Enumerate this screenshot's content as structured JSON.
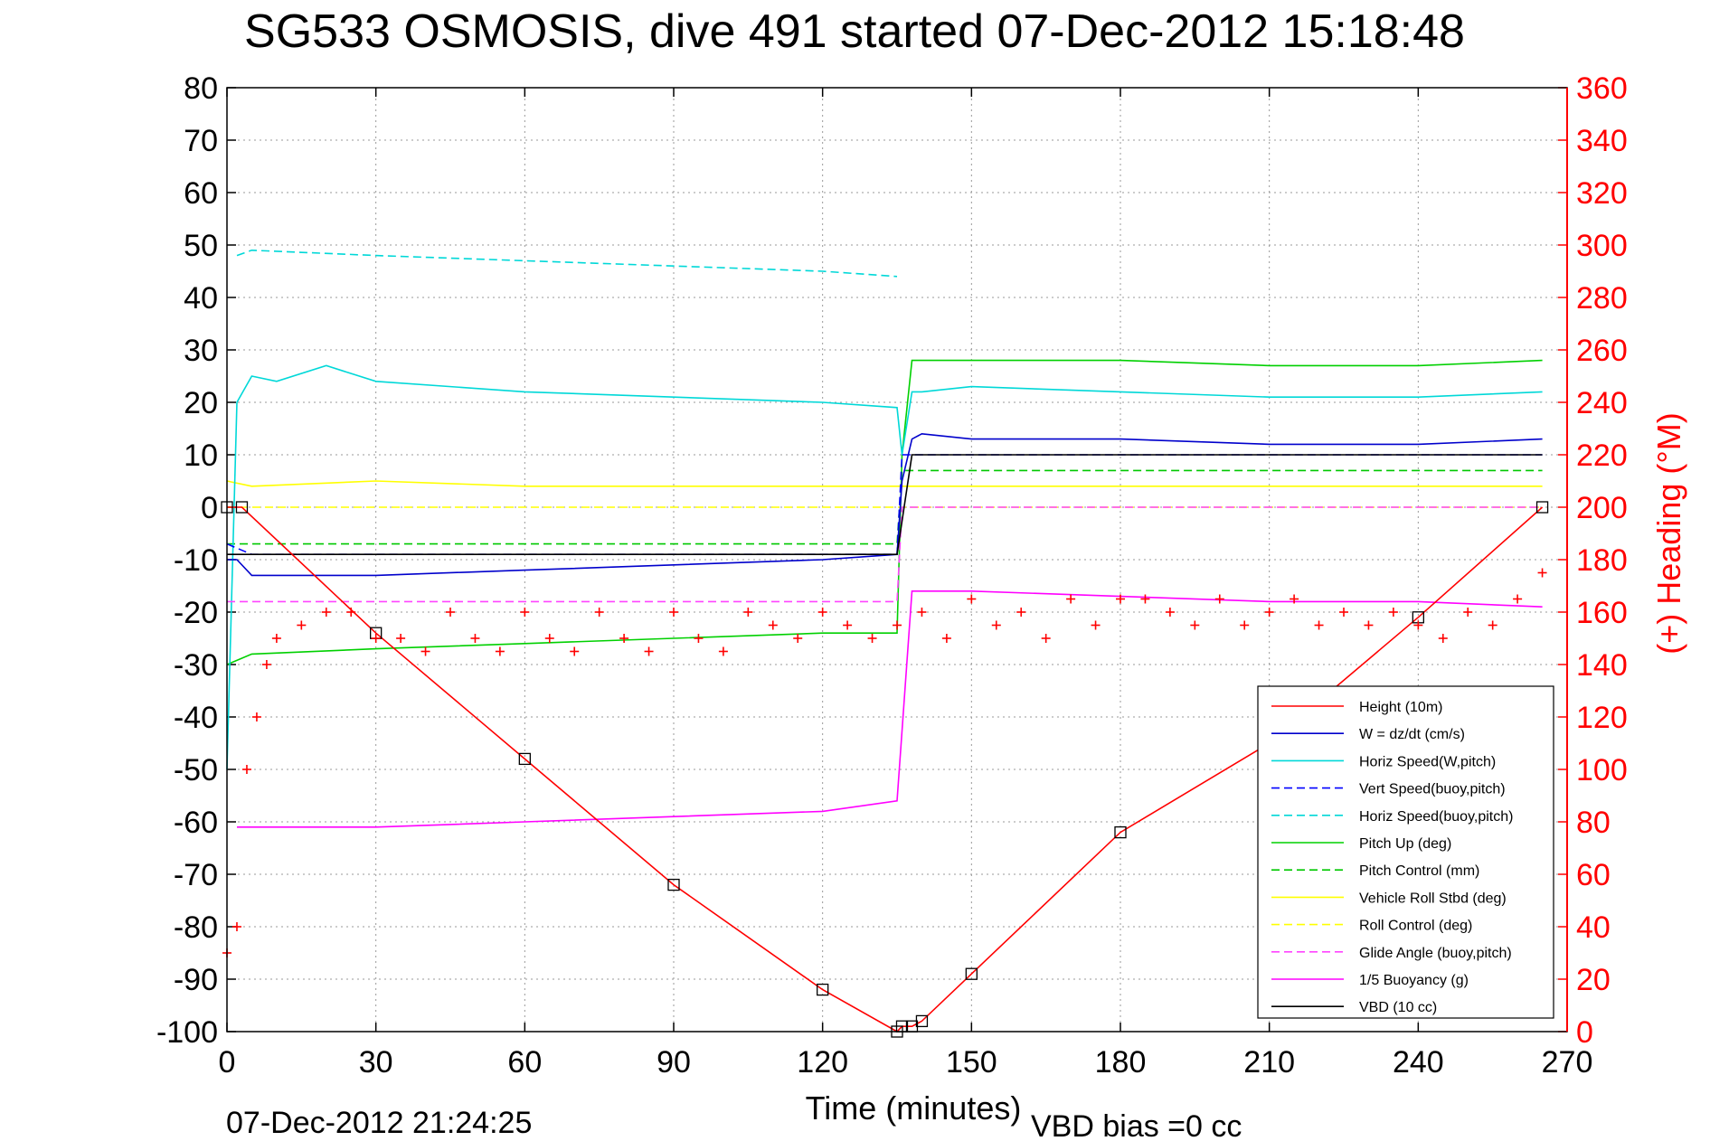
{
  "chart_data": {
    "type": "line",
    "title": "SG533 OSMOSIS, dive 491 started 07-Dec-2012 15:18:48",
    "xlabel": "Time (minutes)",
    "ylabel": "",
    "ylabel_right": "(+) Heading (°M)",
    "xlim": [
      0,
      270
    ],
    "ylim": [
      -100,
      80
    ],
    "ylim_right": [
      0,
      360
    ],
    "xticks": [
      "0",
      "30",
      "60",
      "90",
      "120",
      "150",
      "180",
      "210",
      "240",
      "270"
    ],
    "yticks": [
      "80",
      "70",
      "60",
      "50",
      "40",
      "30",
      "20",
      "10",
      "0",
      "-10",
      "-20",
      "-30",
      "-40",
      "-50",
      "-60",
      "-70",
      "-80",
      "-90",
      "-100"
    ],
    "yticks_right": [
      "360",
      "340",
      "320",
      "300",
      "280",
      "260",
      "240",
      "220",
      "200",
      "180",
      "160",
      "140",
      "120",
      "100",
      "80",
      "60",
      "40",
      "20",
      "0"
    ],
    "grid": true,
    "legend_position": "bottom-right",
    "footer_left": "07-Dec-2012 21:24:25",
    "footer_right": "VBD bias =0 cc",
    "series": [
      {
        "name": "Height (10m)",
        "color": "#ff0000",
        "style": "solid",
        "x": [
          0,
          3,
          30,
          60,
          90,
          120,
          135,
          136,
          138,
          140,
          150,
          180,
          210,
          240,
          265
        ],
        "y": [
          0,
          0,
          -24,
          -48,
          -72,
          -92,
          -100,
          -99,
          -99,
          -98,
          -89,
          -62,
          -45,
          -21,
          0
        ]
      },
      {
        "name": "W = dz/dt (cm/s)",
        "color": "#0000cc",
        "style": "solid",
        "x": [
          0,
          2,
          5,
          10,
          30,
          60,
          90,
          120,
          135,
          136,
          138,
          140,
          150,
          180,
          210,
          240,
          265
        ],
        "y": [
          -10,
          -10,
          -13,
          -13,
          -13,
          -12,
          -11,
          -10,
          -9,
          5,
          13,
          14,
          13,
          13,
          12,
          12,
          13
        ]
      },
      {
        "name": "Horiz Speed(W,pitch)",
        "color": "#00d8d8",
        "style": "solid",
        "x": [
          0,
          2,
          5,
          10,
          20,
          30,
          60,
          90,
          120,
          135,
          136,
          138,
          140,
          150,
          180,
          210,
          240,
          265
        ],
        "y": [
          -50,
          20,
          25,
          24,
          27,
          24,
          22,
          21,
          20,
          19,
          10,
          22,
          22,
          23,
          22,
          21,
          21,
          22
        ]
      },
      {
        "name": "Vert Speed(buoy,pitch)",
        "color": "#0000ff",
        "style": "dashed",
        "x": [
          0,
          5,
          30,
          60,
          90,
          120,
          135,
          136,
          140,
          180,
          210,
          240,
          265
        ],
        "y": [
          -7,
          -9,
          -9,
          -9,
          -9,
          -9,
          -9,
          10,
          10,
          10,
          10,
          10,
          10
        ]
      },
      {
        "name": "Horiz Speed(buoy,pitch)",
        "color": "#00d8d8",
        "style": "dashed",
        "x": [
          2,
          5,
          30,
          60,
          90,
          120,
          135
        ],
        "y": [
          48,
          49,
          48,
          47,
          46,
          45,
          44
        ]
      },
      {
        "name": "Pitch Up (deg)",
        "color": "#00d000",
        "style": "solid",
        "x": [
          0,
          5,
          30,
          60,
          90,
          120,
          135,
          136,
          138,
          150,
          180,
          210,
          240,
          265
        ],
        "y": [
          -30,
          -28,
          -27,
          -26,
          -25,
          -24,
          -24,
          10,
          28,
          28,
          28,
          27,
          27,
          28
        ]
      },
      {
        "name": "Pitch Control (mm)",
        "color": "#00c800",
        "style": "dashed",
        "x": [
          0,
          5,
          135,
          136,
          265
        ],
        "y": [
          -7,
          -7,
          -7,
          7,
          7
        ]
      },
      {
        "name": "Vehicle Roll Stbd (deg)",
        "color": "#ffff00",
        "style": "solid",
        "x": [
          0,
          5,
          30,
          60,
          90,
          120,
          135,
          136,
          150,
          180,
          210,
          240,
          265
        ],
        "y": [
          5,
          4,
          5,
          4,
          4,
          4,
          4,
          4,
          4,
          4,
          4,
          4,
          4
        ]
      },
      {
        "name": "Roll Control (deg)",
        "color": "#ffff00",
        "style": "dashed",
        "x": [
          0,
          5,
          30,
          60,
          90,
          120,
          135,
          136,
          150,
          180,
          210,
          240,
          265
        ],
        "y": [
          0,
          0,
          0,
          0,
          0,
          0,
          0,
          0,
          0,
          0,
          0,
          0,
          0
        ]
      },
      {
        "name": "Glide Angle (buoy,pitch)",
        "color": "#ff44ff",
        "style": "dashed",
        "x": [
          0,
          5,
          30,
          60,
          90,
          120,
          135,
          136,
          140,
          180,
          210,
          240,
          265
        ],
        "y": [
          -18,
          -18,
          -18,
          -18,
          -18,
          -18,
          -18,
          0,
          0,
          0,
          0,
          0,
          0
        ]
      },
      {
        "name": "1/5 Buoyancy (g)",
        "color": "#ff00ff",
        "style": "solid",
        "x": [
          2,
          5,
          30,
          60,
          90,
          120,
          135,
          138,
          150,
          180,
          210,
          240,
          265
        ],
        "y": [
          -61,
          -61,
          -61,
          -60,
          -59,
          -58,
          -56,
          -16,
          -16,
          -17,
          -18,
          -18,
          -19
        ]
      },
      {
        "name": "VBD (10 cc)",
        "color": "#000000",
        "style": "solid",
        "x": [
          0,
          5,
          30,
          60,
          90,
          120,
          135,
          138,
          150,
          180,
          210,
          240,
          265
        ],
        "y": [
          -9,
          -9,
          -9,
          -9,
          -9,
          -9,
          -9,
          10,
          10,
          10,
          10,
          10,
          10
        ]
      }
    ],
    "heading_points": {
      "name": "(+) Heading (°M)",
      "color": "#ff0000",
      "marker": "+",
      "x": [
        0,
        2,
        4,
        6,
        8,
        10,
        15,
        20,
        25,
        30,
        35,
        40,
        45,
        50,
        55,
        60,
        65,
        70,
        75,
        80,
        85,
        90,
        95,
        100,
        105,
        110,
        115,
        120,
        125,
        130,
        135,
        140,
        145,
        150,
        155,
        160,
        165,
        170,
        175,
        180,
        185,
        190,
        195,
        200,
        205,
        210,
        215,
        220,
        225,
        230,
        235,
        240,
        245,
        250,
        255,
        260,
        265
      ],
      "y": [
        30,
        40,
        100,
        120,
        140,
        150,
        155,
        160,
        160,
        150,
        150,
        145,
        160,
        150,
        145,
        160,
        150,
        145,
        160,
        150,
        145,
        160,
        150,
        145,
        160,
        155,
        150,
        160,
        155,
        150,
        155,
        160,
        150,
        165,
        155,
        160,
        150,
        165,
        155,
        165,
        165,
        160,
        155,
        165,
        155,
        160,
        165,
        155,
        160,
        155,
        160,
        155,
        150,
        160,
        155,
        165,
        175
      ]
    }
  }
}
